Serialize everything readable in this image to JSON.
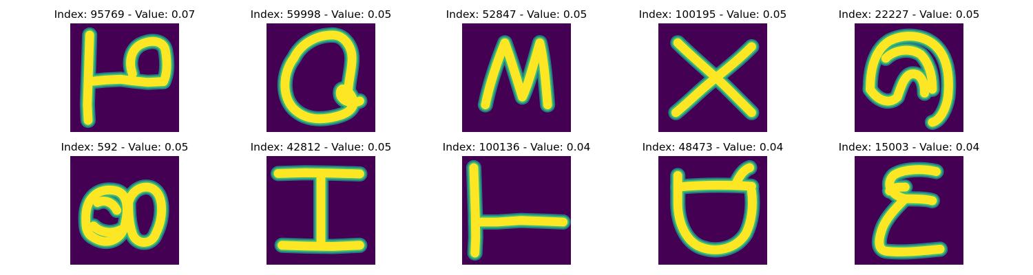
{
  "figure": {
    "panels": [
      {
        "index": "95769",
        "value": "0.07",
        "title": "Index: 95769 - Value: 0.07",
        "glyph": "handwritten-letter-p-shape"
      },
      {
        "index": "59998",
        "value": "0.05",
        "title": "Index: 59998 - Value: 0.05",
        "glyph": "handwritten-letter-q-shape"
      },
      {
        "index": "52847",
        "value": "0.05",
        "title": "Index: 52847 - Value: 0.05",
        "glyph": "handwritten-letter-n-shape"
      },
      {
        "index": "100195",
        "value": "0.05",
        "title": "Index: 100195 - Value: 0.05",
        "glyph": "handwritten-letter-x-shape"
      },
      {
        "index": "22227",
        "value": "0.05",
        "title": "Index: 22227 - Value: 0.05",
        "glyph": "handwritten-arch-shape"
      },
      {
        "index": "592",
        "value": "0.05",
        "title": "Index: 592 - Value: 0.05",
        "glyph": "handwritten-double-loop-shape"
      },
      {
        "index": "42812",
        "value": "0.05",
        "title": "Index: 42812 - Value: 0.05",
        "glyph": "handwritten-letter-i-shape"
      },
      {
        "index": "100136",
        "value": "0.04",
        "title": "Index: 100136 - Value: 0.04",
        "glyph": "handwritten-letter-l-shape"
      },
      {
        "index": "48473",
        "value": "0.04",
        "title": "Index: 48473 - Value: 0.04",
        "glyph": "handwritten-cup-shape"
      },
      {
        "index": "15003",
        "value": "0.04",
        "title": "Index: 15003 - Value: 0.04",
        "glyph": "handwritten-epsilon-shape"
      }
    ],
    "colors": {
      "background": "#440154",
      "stroke": "#fde725",
      "edge": "#3aba76",
      "halo": "#21908d"
    }
  }
}
